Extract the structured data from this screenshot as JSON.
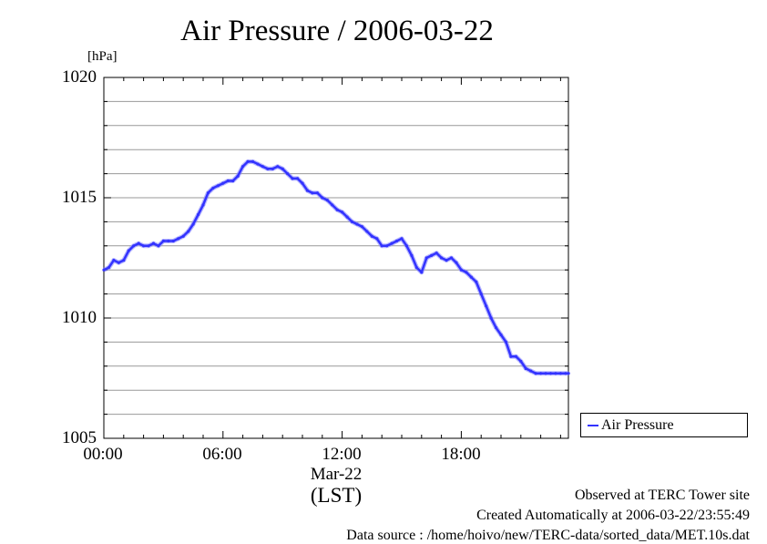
{
  "chart_data": {
    "type": "line",
    "title": "Air Pressure / 2006-03-22",
    "ylabel": "[hPa]",
    "xlabel": "(LST)",
    "x_date_label": "Mar-22",
    "ylim": [
      1005,
      1020
    ],
    "xlim": [
      0,
      23.5
    ],
    "y_ticks": [
      "1005",
      "1010",
      "1015",
      "1020"
    ],
    "x_ticks": [
      "00:00",
      "06:00",
      "12:00",
      "18:00"
    ],
    "grid": true,
    "legend_position": "right",
    "series": [
      {
        "name": "Air Pressure",
        "color": "#3333ff",
        "x": [
          0,
          0.25,
          0.5,
          0.75,
          1.0,
          1.25,
          1.5,
          1.75,
          2.0,
          2.25,
          2.5,
          2.75,
          3.0,
          3.25,
          3.5,
          3.75,
          4.0,
          4.25,
          4.5,
          4.75,
          5.0,
          5.25,
          5.5,
          5.75,
          6.0,
          6.25,
          6.5,
          6.75,
          7.0,
          7.25,
          7.5,
          7.75,
          8.0,
          8.25,
          8.5,
          8.75,
          9.0,
          9.25,
          9.5,
          9.75,
          10.0,
          10.25,
          10.5,
          10.75,
          11.0,
          11.25,
          11.5,
          11.75,
          12.0,
          12.25,
          12.5,
          12.75,
          13.0,
          13.25,
          13.5,
          13.75,
          14.0,
          14.25,
          14.5,
          14.75,
          15.0,
          15.25,
          15.5,
          15.75,
          16.0,
          16.25,
          16.5,
          16.75,
          17.0,
          17.25,
          17.5,
          17.75,
          18.0,
          18.25,
          18.5,
          18.75,
          19.0,
          19.25,
          19.5,
          19.75,
          20.0,
          20.25,
          20.5,
          20.75,
          21.0,
          21.25,
          21.5,
          21.75,
          22.0,
          22.25,
          22.5,
          22.75,
          23.0,
          23.25,
          23.4
        ],
        "values": [
          1012.0,
          1012.1,
          1012.4,
          1012.3,
          1012.4,
          1012.8,
          1013.0,
          1013.1,
          1013.0,
          1013.0,
          1013.1,
          1013.0,
          1013.2,
          1013.2,
          1013.2,
          1013.3,
          1013.4,
          1013.6,
          1013.9,
          1014.3,
          1014.7,
          1015.2,
          1015.4,
          1015.5,
          1015.6,
          1015.7,
          1015.7,
          1015.9,
          1016.3,
          1016.5,
          1016.5,
          1016.4,
          1016.3,
          1016.2,
          1016.2,
          1016.3,
          1016.2,
          1016.0,
          1015.8,
          1015.8,
          1015.6,
          1015.3,
          1015.2,
          1015.2,
          1015.0,
          1014.9,
          1014.7,
          1014.5,
          1014.4,
          1014.2,
          1014.0,
          1013.9,
          1013.8,
          1013.6,
          1013.4,
          1013.3,
          1013.0,
          1013.0,
          1013.1,
          1013.2,
          1013.3,
          1013.0,
          1012.6,
          1012.1,
          1011.9,
          1012.5,
          1012.6,
          1012.7,
          1012.5,
          1012.4,
          1012.5,
          1012.3,
          1012.0,
          1011.9,
          1011.7,
          1011.5,
          1011.0,
          1010.5,
          1010.0,
          1009.6,
          1009.3,
          1009.0,
          1008.4,
          1008.4,
          1008.2,
          1007.9,
          1007.8,
          1007.7,
          1007.7,
          1007.7,
          1007.7,
          1007.7,
          1007.7,
          1007.7,
          1007.7
        ]
      }
    ],
    "footer": {
      "observed": "Observed at TERC Tower site",
      "created": "Created Automatically at 2006-03-22/23:55:49",
      "source": "Data source : /home/hoivo/new/TERC-data/sorted_data/MET.10s.dat"
    }
  }
}
